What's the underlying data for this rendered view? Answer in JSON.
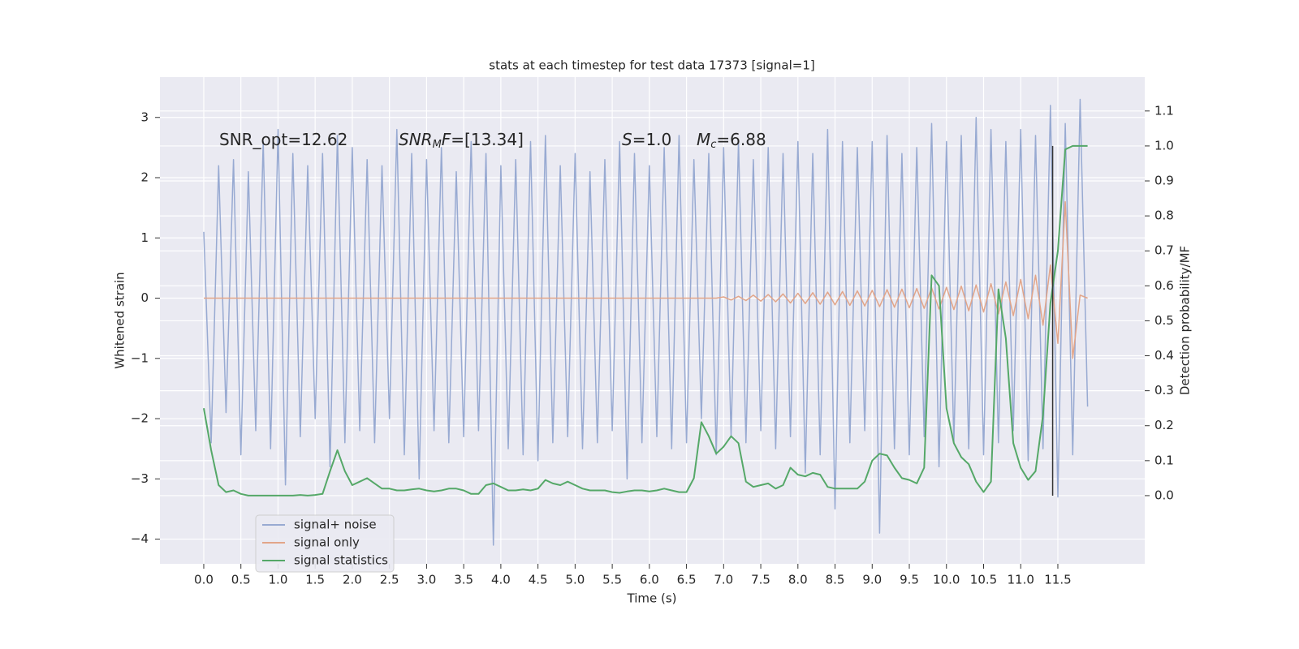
{
  "chart_data": {
    "type": "line",
    "title": "stats at each timestep for test data 17373 [signal=1]",
    "x_label": "Time (s)",
    "y_label": "Whitened strain",
    "y2_label": "Detection probability/MF",
    "xlim": [
      -0.59,
      12.67
    ],
    "ylim": [
      -4.41,
      3.67
    ],
    "y2lim": [
      -0.195,
      1.197
    ],
    "xticks": [
      {
        "value": 0,
        "label": "0.0"
      },
      {
        "value": 0.5,
        "label": "0.5"
      },
      {
        "value": 1,
        "label": "1.0"
      },
      {
        "value": 1.5,
        "label": "1.5"
      },
      {
        "value": 2,
        "label": "2.0"
      },
      {
        "value": 2.5,
        "label": "2.5"
      },
      {
        "value": 3,
        "label": "3.0"
      },
      {
        "value": 3.5,
        "label": "3.5"
      },
      {
        "value": 4,
        "label": "4.0"
      },
      {
        "value": 4.5,
        "label": "4.5"
      },
      {
        "value": 5,
        "label": "5.0"
      },
      {
        "value": 5.5,
        "label": "5.5"
      },
      {
        "value": 6,
        "label": "6.0"
      },
      {
        "value": 6.5,
        "label": "6.5"
      },
      {
        "value": 7,
        "label": "7.0"
      },
      {
        "value": 7.5,
        "label": "7.5"
      },
      {
        "value": 8,
        "label": "8.0"
      },
      {
        "value": 8.5,
        "label": "8.5"
      },
      {
        "value": 9,
        "label": "9.0"
      },
      {
        "value": 9.5,
        "label": "9.5"
      },
      {
        "value": 10,
        "label": "10.0"
      },
      {
        "value": 10.5,
        "label": "10.5"
      },
      {
        "value": 11,
        "label": "11.0"
      },
      {
        "value": 11.5,
        "label": "11.5"
      }
    ],
    "yticks": [
      {
        "value": -4,
        "label": "−4"
      },
      {
        "value": -3,
        "label": "−3"
      },
      {
        "value": -2,
        "label": "−2"
      },
      {
        "value": -1,
        "label": "−1"
      },
      0,
      1,
      2,
      3
    ],
    "y2ticks": [
      {
        "value": 0,
        "label": "0.0"
      },
      {
        "value": 0.1,
        "label": "0.1"
      },
      {
        "value": 0.2,
        "label": "0.2"
      },
      {
        "value": 0.3,
        "label": "0.3"
      },
      {
        "value": 0.4,
        "label": "0.4"
      },
      {
        "value": 0.5,
        "label": "0.5"
      },
      {
        "value": 0.6,
        "label": "0.6"
      },
      {
        "value": 0.7,
        "label": "0.7"
      },
      {
        "value": 0.8,
        "label": "0.8"
      },
      {
        "value": 0.9,
        "label": "0.9"
      },
      {
        "value": 1.0,
        "label": "1.0"
      },
      {
        "value": 1.1,
        "label": "1.1"
      }
    ],
    "grid": true,
    "legend": "lower left",
    "annotations": [
      {
        "text": "SNR_opt=12.62"
      },
      {
        "symbol": "SNR",
        "subscript": "M",
        "symbol2": "F",
        "text": "=[13.34]"
      },
      {
        "symbol": "S",
        "text": "=1.0"
      },
      {
        "symbol": "M",
        "subscript": "c",
        "text": "=6.88"
      }
    ],
    "vline": {
      "x": 11.43,
      "color": "#333333"
    },
    "x": [
      0,
      0.1,
      0.2,
      0.3,
      0.4,
      0.5,
      0.6,
      0.7,
      0.8,
      0.9,
      1,
      1.1,
      1.2,
      1.3,
      1.4,
      1.5,
      1.6,
      1.7,
      1.8,
      1.9,
      2,
      2.1,
      2.2,
      2.3,
      2.4,
      2.5,
      2.6,
      2.7,
      2.8,
      2.9,
      3,
      3.1,
      3.2,
      3.3,
      3.4,
      3.5,
      3.6,
      3.7,
      3.8,
      3.9,
      4,
      4.1,
      4.2,
      4.3,
      4.4,
      4.5,
      4.6,
      4.7,
      4.8,
      4.9,
      5,
      5.1,
      5.2,
      5.3,
      5.4,
      5.5,
      5.6,
      5.7,
      5.8,
      5.9,
      6,
      6.1,
      6.2,
      6.3,
      6.4,
      6.5,
      6.6,
      6.7,
      6.8,
      6.9,
      7,
      7.1,
      7.2,
      7.3,
      7.4,
      7.5,
      7.6,
      7.7,
      7.8,
      7.9,
      8,
      8.1,
      8.2,
      8.3,
      8.4,
      8.5,
      8.6,
      8.7,
      8.8,
      8.9,
      9,
      9.1,
      9.2,
      9.3,
      9.4,
      9.5,
      9.6,
      9.7,
      9.8,
      9.9,
      10,
      10.1,
      10.2,
      10.3,
      10.4,
      10.5,
      10.6,
      10.7,
      10.8,
      10.9,
      11,
      11.1,
      11.2,
      11.3,
      11.4,
      11.5,
      11.6,
      11.7,
      11.8,
      11.9
    ],
    "series": [
      {
        "name": "signal+ noise",
        "color": "#98aad2",
        "values": [
          1.1,
          -2.4,
          2.2,
          -1.9,
          2.3,
          -2.6,
          2.1,
          -2.2,
          2.6,
          -2.5,
          2.8,
          -3.1,
          2.4,
          -2.3,
          2.2,
          -2.0,
          2.4,
          -2.8,
          2.7,
          -2.4,
          2.5,
          -2.2,
          2.3,
          -2.4,
          2.2,
          -2.0,
          2.8,
          -2.6,
          2.4,
          -3.0,
          2.3,
          -2.2,
          2.5,
          -2.4,
          2.1,
          -2.3,
          2.6,
          -2.2,
          2.4,
          -4.1,
          2.2,
          -2.5,
          2.3,
          -2.6,
          2.6,
          -2.7,
          2.7,
          -2.4,
          2.2,
          -2.3,
          2.4,
          -2.5,
          2.1,
          -2.4,
          2.3,
          -2.2,
          2.6,
          -3.0,
          2.4,
          -2.4,
          2.2,
          -2.3,
          2.5,
          -2.5,
          2.7,
          -2.4,
          2.3,
          -2.0,
          2.4,
          -2.6,
          2.5,
          -2.3,
          2.6,
          -2.4,
          2.3,
          -2.2,
          2.5,
          -2.5,
          2.4,
          -2.3,
          2.6,
          -2.9,
          2.4,
          -2.6,
          2.8,
          -3.5,
          2.6,
          -2.4,
          2.5,
          -2.2,
          2.6,
          -3.9,
          2.7,
          -2.5,
          2.4,
          -2.6,
          2.5,
          -2.3,
          2.9,
          -2.8,
          2.6,
          -2.4,
          2.7,
          -2.5,
          3.0,
          -2.6,
          2.8,
          -2.4,
          2.6,
          -2.2,
          2.8,
          -2.7,
          2.7,
          -2.5,
          3.2,
          -3.3,
          2.9,
          -2.6,
          3.3,
          -1.8
        ]
      },
      {
        "name": "signal only",
        "color": "#e2a589",
        "values": [
          0,
          0,
          0,
          0,
          0,
          0,
          0,
          0,
          0,
          0,
          0,
          0,
          0,
          0,
          0,
          0,
          0,
          0,
          0,
          0,
          0,
          0,
          0,
          0,
          0,
          0,
          0,
          0,
          0,
          0,
          0,
          0,
          0,
          0,
          0,
          0,
          0,
          0,
          0,
          0,
          0,
          0,
          0,
          0,
          0,
          0,
          0,
          0,
          0,
          0,
          0,
          0,
          0,
          0,
          0,
          0,
          0,
          0,
          0,
          0,
          0,
          0,
          0,
          0,
          0,
          0,
          0,
          0,
          0,
          0,
          0.02,
          -0.03,
          0.03,
          -0.04,
          0.05,
          -0.05,
          0.06,
          -0.06,
          0.07,
          -0.08,
          0.08,
          -0.09,
          0.09,
          -0.1,
          0.1,
          -0.11,
          0.11,
          -0.12,
          0.12,
          -0.13,
          0.13,
          -0.14,
          0.14,
          -0.15,
          0.15,
          -0.16,
          0.16,
          -0.17,
          0.17,
          -0.18,
          0.18,
          -0.19,
          0.2,
          -0.21,
          0.22,
          -0.23,
          0.24,
          -0.26,
          0.27,
          -0.29,
          0.31,
          -0.34,
          0.38,
          -0.45,
          0.55,
          -0.75,
          1.6,
          -1.0,
          0.05,
          0.0
        ]
      },
      {
        "name": "signal statistics",
        "color": "#55a868",
        "axis": "y2",
        "values": [
          0.25,
          0.13,
          0.03,
          0.01,
          0.015,
          0.005,
          0.0,
          0.0,
          0.0,
          0.0,
          0.0,
          0.0,
          0.0,
          0.002,
          0.0,
          0.002,
          0.005,
          0.07,
          0.13,
          0.07,
          0.03,
          0.04,
          0.05,
          0.035,
          0.02,
          0.02,
          0.015,
          0.015,
          0.018,
          0.02,
          0.015,
          0.012,
          0.015,
          0.02,
          0.02,
          0.015,
          0.005,
          0.005,
          0.03,
          0.035,
          0.025,
          0.015,
          0.015,
          0.018,
          0.015,
          0.02,
          0.045,
          0.035,
          0.03,
          0.04,
          0.03,
          0.02,
          0.015,
          0.015,
          0.015,
          0.01,
          0.008,
          0.012,
          0.015,
          0.015,
          0.012,
          0.015,
          0.02,
          0.015,
          0.01,
          0.01,
          0.05,
          0.21,
          0.17,
          0.12,
          0.14,
          0.17,
          0.15,
          0.04,
          0.025,
          0.03,
          0.035,
          0.02,
          0.03,
          0.08,
          0.06,
          0.055,
          0.065,
          0.06,
          0.025,
          0.02,
          0.02,
          0.02,
          0.02,
          0.04,
          0.1,
          0.12,
          0.115,
          0.08,
          0.05,
          0.045,
          0.035,
          0.08,
          0.63,
          0.6,
          0.25,
          0.15,
          0.11,
          0.09,
          0.04,
          0.01,
          0.04,
          0.59,
          0.45,
          0.15,
          0.08,
          0.045,
          0.07,
          0.23,
          0.55,
          0.7,
          0.99,
          1.0,
          1.0,
          1.0
        ]
      }
    ]
  }
}
